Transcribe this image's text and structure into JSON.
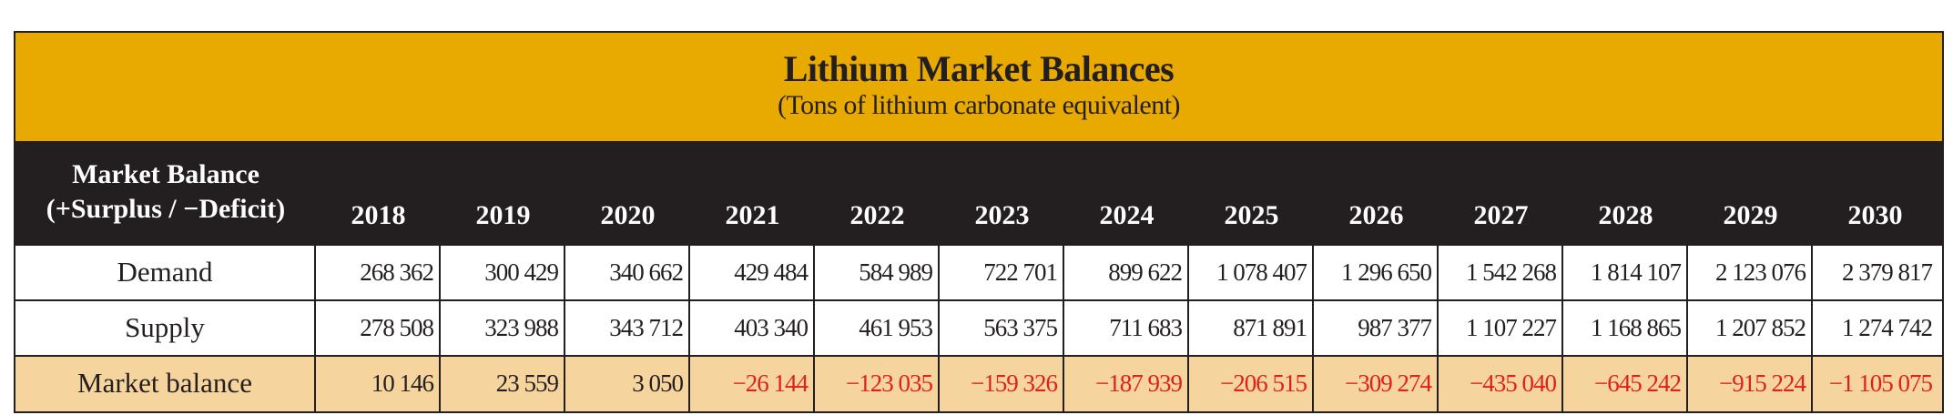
{
  "title": "Lithium Market Balances",
  "subtitle": "(Tons of lithium carbonate equivalent)",
  "header": {
    "label_line1": "Market Balance",
    "label_line2": "(+Surplus / −Deficit)",
    "years": [
      "2018",
      "2019",
      "2020",
      "2021",
      "2022",
      "2023",
      "2024",
      "2025",
      "2026",
      "2027",
      "2028",
      "2029",
      "2030"
    ]
  },
  "rows": [
    {
      "label": "Demand",
      "values": [
        "268 362",
        "300 429",
        "340 662",
        "429 484",
        "584 989",
        "722 701",
        "899 622",
        "1 078 407",
        "1 296 650",
        "1 542 268",
        "1 814 107",
        "2 123 076",
        "2 379 817"
      ]
    },
    {
      "label": "Supply",
      "values": [
        "278 508",
        "323 988",
        "343 712",
        "403 340",
        "461 953",
        "563 375",
        "711 683",
        "871 891",
        "987 377",
        "1 107 227",
        "1 168 865",
        "1 207 852",
        "1 274 742"
      ]
    },
    {
      "label": "Market balance",
      "values": [
        "10 146",
        "23 559",
        "3 050",
        "−26 144",
        "−123 035",
        "−159 326",
        "−187 939",
        "−206 515",
        "−309 274",
        "−435 040",
        "−645 242",
        "−915 224",
        "−1 105 075"
      ]
    }
  ],
  "colors": {
    "band": "#e8a900",
    "header": "#231f20",
    "balance_row": "#f6d49d",
    "negative": "#e0201b"
  }
}
